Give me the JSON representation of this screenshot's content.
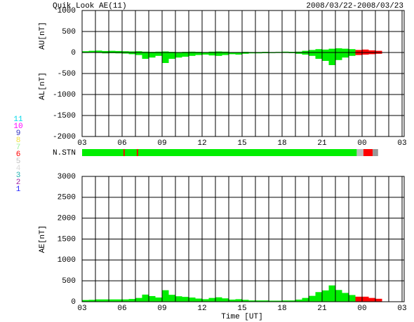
{
  "chart_data": [
    {
      "type": "area",
      "title": "Quik Look AE(11)",
      "subtitle": "2008/03/22-2008/03/23",
      "y_labels": [
        "AU[nT]",
        "AL[nT]"
      ],
      "x": [
        0,
        0.5,
        1,
        1.5,
        2,
        2.5,
        3,
        3.5,
        4,
        4.5,
        5,
        5.5,
        6,
        6.5,
        7,
        7.5,
        8,
        8.5,
        9,
        9.5,
        10,
        10.5,
        11,
        11.5,
        12,
        12.5,
        13,
        13.5,
        14,
        14.5,
        15,
        15.5,
        16,
        16.5,
        17,
        17.5,
        18,
        18.5,
        19,
        19.5,
        20,
        20.5,
        21,
        21.5,
        22
      ],
      "series": [
        {
          "color": "#00ee00",
          "values": [
            30,
            40,
            45,
            35,
            40,
            35,
            30,
            25,
            30,
            20,
            15,
            20,
            25,
            15,
            10,
            15,
            20,
            15,
            10,
            20,
            25,
            20,
            10,
            10,
            15,
            10,
            10,
            15,
            10,
            15,
            20,
            15,
            20,
            40,
            60,
            80,
            70,
            90,
            100,
            90,
            80,
            null,
            null,
            null,
            null
          ]
        },
        {
          "color": "#ff0000",
          "values": [
            null,
            null,
            null,
            null,
            null,
            null,
            null,
            null,
            null,
            null,
            null,
            null,
            null,
            null,
            null,
            null,
            null,
            null,
            null,
            null,
            null,
            null,
            null,
            null,
            null,
            null,
            null,
            null,
            null,
            null,
            null,
            null,
            null,
            null,
            null,
            null,
            null,
            null,
            null,
            null,
            null,
            60,
            70,
            50,
            40
          ]
        },
        {
          "color": "#00ee00",
          "values": [
            -10,
            -5,
            -10,
            -20,
            -15,
            -20,
            -25,
            -40,
            -60,
            -150,
            -120,
            -80,
            -250,
            -150,
            -120,
            -100,
            -80,
            -60,
            -50,
            -70,
            -80,
            -60,
            -40,
            -50,
            -30,
            -20,
            -20,
            -15,
            -15,
            -10,
            -10,
            -15,
            -30,
            -50,
            -80,
            -150,
            -200,
            -300,
            -180,
            -120,
            -80,
            null,
            null,
            null,
            null
          ]
        },
        {
          "color": "#ff0000",
          "values": [
            null,
            null,
            null,
            null,
            null,
            null,
            null,
            null,
            null,
            null,
            null,
            null,
            null,
            null,
            null,
            null,
            null,
            null,
            null,
            null,
            null,
            null,
            null,
            null,
            null,
            null,
            null,
            null,
            null,
            null,
            null,
            null,
            null,
            null,
            null,
            null,
            null,
            null,
            null,
            null,
            null,
            -60,
            -50,
            -40,
            -30
          ]
        }
      ],
      "xlim": [
        0,
        24
      ],
      "xticks": [
        {
          "value": 0,
          "label": "03"
        },
        {
          "value": 3,
          "label": "06"
        },
        {
          "value": 6,
          "label": "09"
        },
        {
          "value": 9,
          "label": "12"
        },
        {
          "value": 12,
          "label": "15"
        },
        {
          "value": 15,
          "label": "18"
        },
        {
          "value": 18,
          "label": "21"
        },
        {
          "value": 21,
          "label": "00"
        },
        {
          "value": 24,
          "label": "03"
        }
      ],
      "ylim": [
        -2000,
        1000
      ],
      "yticks": [
        -2000,
        -1500,
        -1000,
        -500,
        0,
        500,
        1000
      ],
      "grid": true
    },
    {
      "type": "stations",
      "label": "N.STN",
      "xlim": [
        0,
        24
      ],
      "segments": [
        {
          "start": 0,
          "end": 20.6,
          "color": "#00ee00"
        },
        {
          "start": 3.1,
          "end": 3.2,
          "color": "#ff0000"
        },
        {
          "start": 4.1,
          "end": 4.2,
          "color": "#ff0000"
        },
        {
          "start": 20.6,
          "end": 21.1,
          "color": "#bbbbbb"
        },
        {
          "start": 21.1,
          "end": 21.8,
          "color": "#ff0000"
        },
        {
          "start": 21.8,
          "end": 22.2,
          "color": "#999999"
        }
      ],
      "legend": [
        {
          "label": "11",
          "color": "#00d8e8"
        },
        {
          "label": "10",
          "color": "#ff00ff"
        },
        {
          "label": "9",
          "color": "#3030c0"
        },
        {
          "label": "8",
          "color": "#f0e040"
        },
        {
          "label": "7",
          "color": "#a0f0a0"
        },
        {
          "label": "6",
          "color": "#ff0000"
        },
        {
          "label": "5",
          "color": "#c0c0c0"
        },
        {
          "label": "4",
          "color": "#d8d8d8"
        },
        {
          "label": "3",
          "color": "#20b0b0"
        },
        {
          "label": "2",
          "color": "#a020a0"
        },
        {
          "label": "1",
          "color": "#2020ff"
        }
      ]
    },
    {
      "type": "area",
      "y_labels": [
        "AE[nT]"
      ],
      "xlabel": "Time [UT]",
      "x": [
        0,
        0.5,
        1,
        1.5,
        2,
        2.5,
        3,
        3.5,
        4,
        4.5,
        5,
        5.5,
        6,
        6.5,
        7,
        7.5,
        8,
        8.5,
        9,
        9.5,
        10,
        10.5,
        11,
        11.5,
        12,
        12.5,
        13,
        13.5,
        14,
        14.5,
        15,
        15.5,
        16,
        16.5,
        17,
        17.5,
        18,
        18.5,
        19,
        19.5,
        20,
        20.5,
        21,
        21.5,
        22
      ],
      "series": [
        {
          "color": "#00ee00",
          "values": [
            40,
            45,
            55,
            55,
            55,
            55,
            55,
            65,
            90,
            170,
            135,
            100,
            275,
            165,
            130,
            115,
            100,
            75,
            60,
            90,
            105,
            80,
            50,
            60,
            45,
            30,
            30,
            30,
            25,
            25,
            30,
            30,
            50,
            90,
            140,
            230,
            270,
            390,
            280,
            210,
            160,
            null,
            null,
            null,
            null
          ]
        },
        {
          "color": "#ff0000",
          "values": [
            null,
            null,
            null,
            null,
            null,
            null,
            null,
            null,
            null,
            null,
            null,
            null,
            null,
            null,
            null,
            null,
            null,
            null,
            null,
            null,
            null,
            null,
            null,
            null,
            null,
            null,
            null,
            null,
            null,
            null,
            null,
            null,
            null,
            null,
            null,
            null,
            null,
            null,
            null,
            null,
            null,
            120,
            120,
            90,
            70
          ]
        }
      ],
      "xlim": [
        0,
        24
      ],
      "xticks": [
        {
          "value": 0,
          "label": "03"
        },
        {
          "value": 3,
          "label": "06"
        },
        {
          "value": 6,
          "label": "09"
        },
        {
          "value": 9,
          "label": "12"
        },
        {
          "value": 12,
          "label": "15"
        },
        {
          "value": 15,
          "label": "18"
        },
        {
          "value": 18,
          "label": "21"
        },
        {
          "value": 21,
          "label": "00"
        },
        {
          "value": 24,
          "label": "03"
        }
      ],
      "ylim": [
        0,
        3000
      ],
      "yticks": [
        0,
        500,
        1000,
        1500,
        2000,
        2500,
        3000
      ],
      "grid": true
    }
  ]
}
